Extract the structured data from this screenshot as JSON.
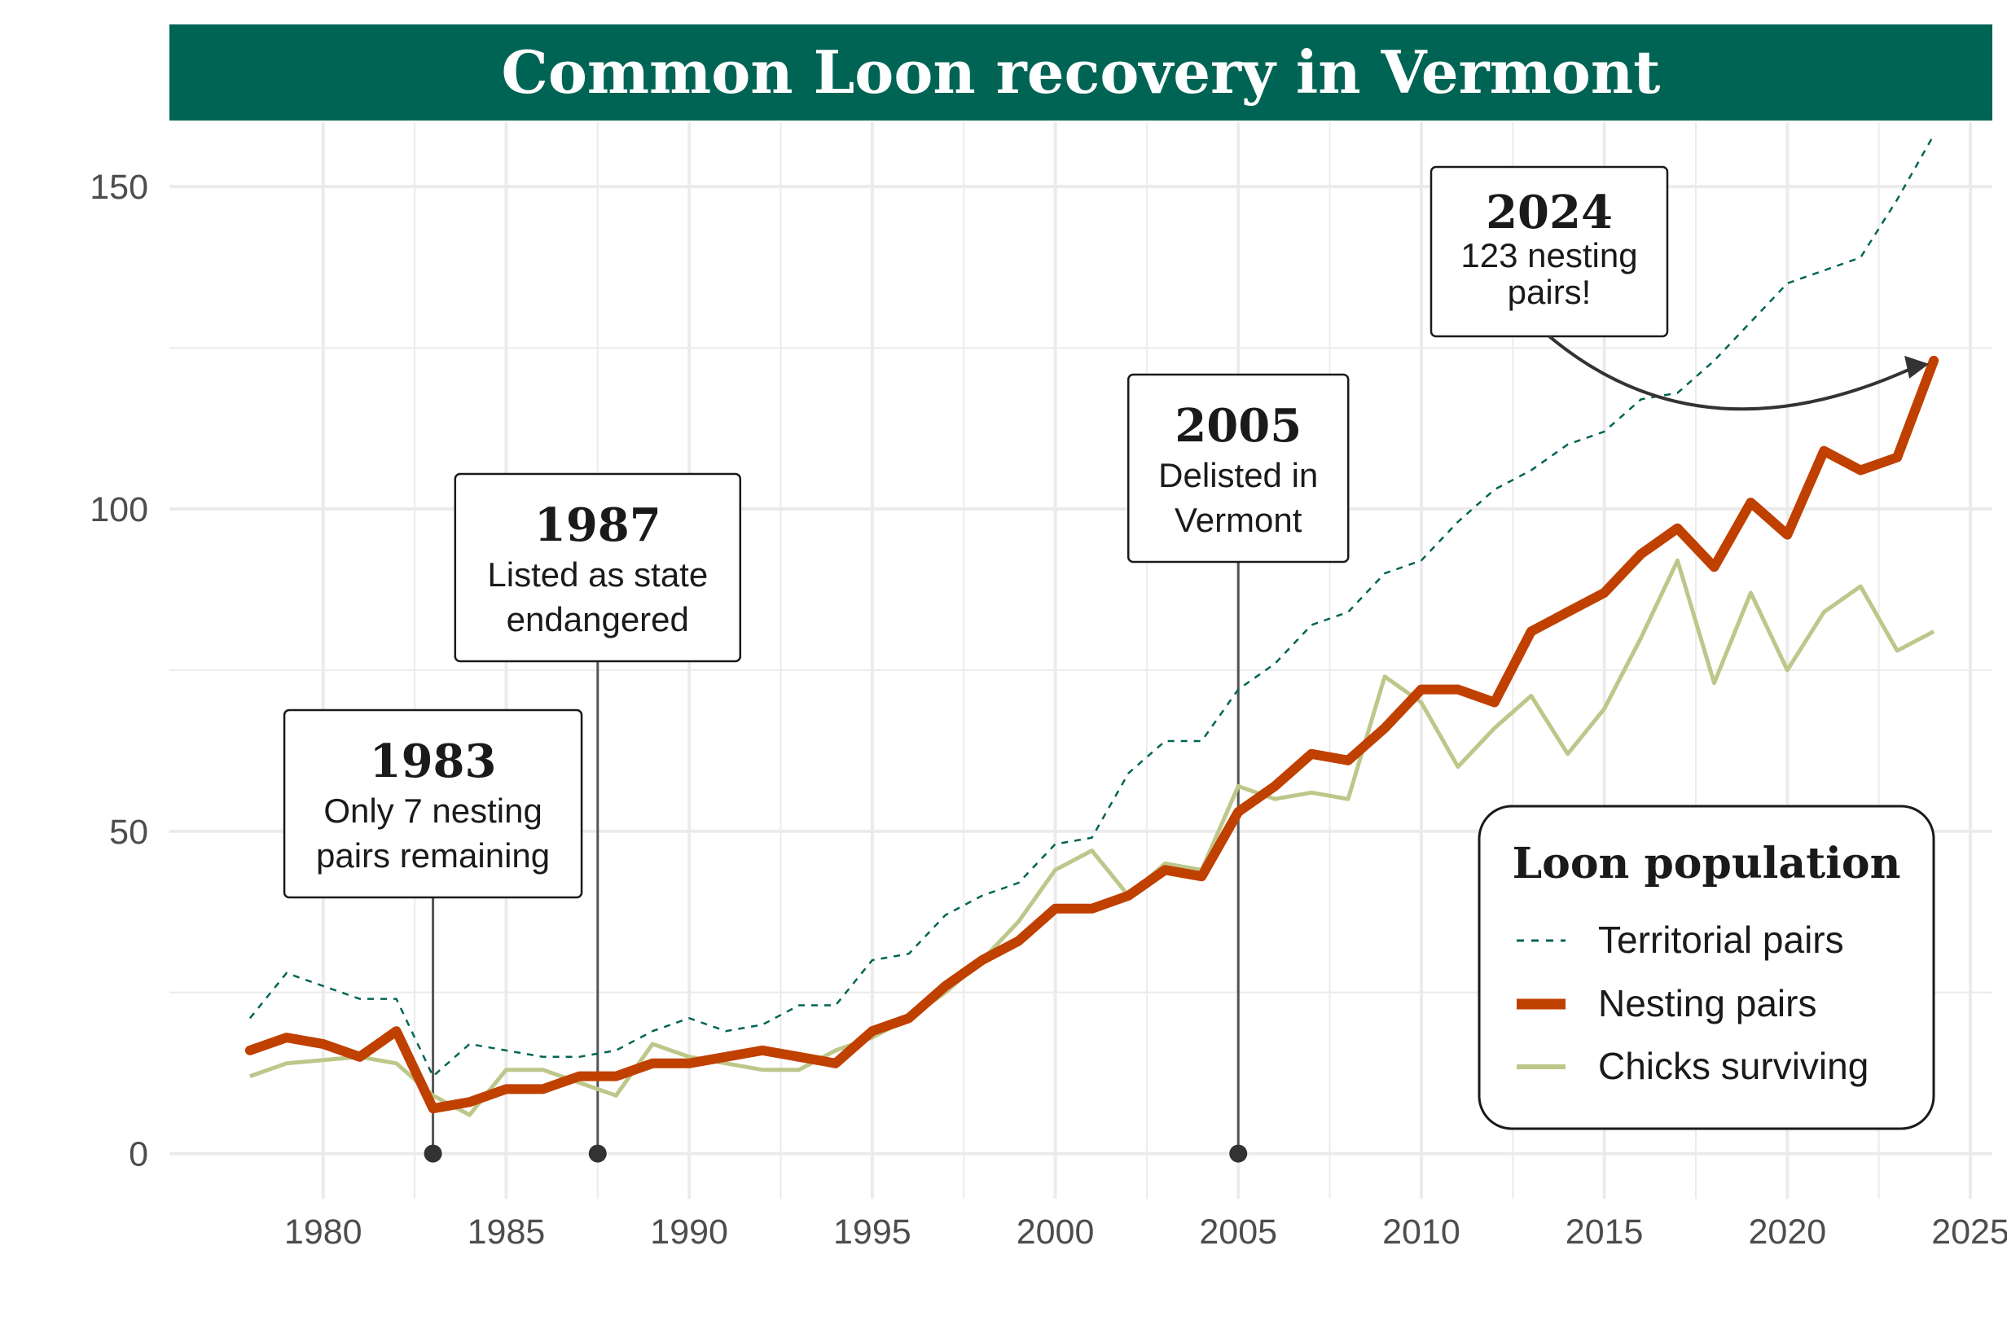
{
  "chart_data": {
    "type": "line",
    "title": "Common Loon recovery in Vermont",
    "xlabel": "",
    "ylabel": "",
    "xlim": [
      1975.8,
      2025.6
    ],
    "ylim": [
      -7,
      160
    ],
    "x_ticks": [
      1980,
      1985,
      1990,
      1995,
      2000,
      2005,
      2010,
      2015,
      2020,
      2025
    ],
    "y_ticks": [
      0,
      50,
      100,
      150
    ],
    "grid": true,
    "legend_position": "bottom-right",
    "legend_title": "Loon population",
    "colors": {
      "title_bar": "#006455",
      "territorial": "#006455",
      "nesting": "#C04000",
      "chicks": "#BDC78A",
      "grid": "#ebebeb",
      "annotation": "#333333"
    },
    "x": [
      1978,
      1979,
      1980,
      1981,
      1982,
      1983,
      1984,
      1985,
      1986,
      1987,
      1988,
      1989,
      1990,
      1991,
      1992,
      1993,
      1994,
      1995,
      1996,
      1997,
      1998,
      1999,
      2000,
      2001,
      2002,
      2003,
      2004,
      2005,
      2006,
      2007,
      2008,
      2009,
      2010,
      2011,
      2012,
      2013,
      2014,
      2015,
      2016,
      2017,
      2018,
      2019,
      2020,
      2021,
      2022,
      2023,
      2024
    ],
    "series": [
      {
        "name": "Territorial pairs",
        "style": "dashed",
        "values": [
          21,
          28,
          26,
          24,
          24,
          12,
          17,
          16,
          15,
          15,
          16,
          19,
          21,
          19,
          20,
          23,
          23,
          30,
          31,
          37,
          40,
          42,
          48,
          49,
          59,
          64,
          64,
          72,
          76,
          82,
          84,
          90,
          92,
          98,
          103,
          106,
          110,
          112,
          117,
          118,
          123,
          129,
          135,
          137,
          139,
          148,
          158
        ]
      },
      {
        "name": "Nesting pairs",
        "style": "thick",
        "values": [
          16,
          18,
          17,
          15,
          19,
          7,
          8,
          10,
          10,
          12,
          12,
          14,
          14,
          15,
          16,
          15,
          14,
          19,
          21,
          26,
          30,
          33,
          38,
          38,
          40,
          44,
          43,
          53,
          57,
          62,
          61,
          66,
          72,
          72,
          70,
          81,
          84,
          87,
          93,
          97,
          91,
          101,
          96,
          109,
          106,
          108,
          123
        ]
      },
      {
        "name": "Chicks surviving",
        "style": "solid",
        "values": [
          12,
          14,
          14.5,
          15,
          14,
          9,
          6,
          13,
          13,
          11,
          9,
          17,
          15,
          14,
          13,
          13,
          16,
          18,
          21,
          25,
          30,
          36,
          44,
          47,
          40,
          45,
          44,
          57,
          55,
          56,
          55,
          74,
          70,
          60,
          66,
          71,
          62,
          69,
          80,
          92,
          73,
          87,
          75,
          84,
          88,
          78,
          81
        ]
      }
    ],
    "annotations": [
      {
        "year": "1983",
        "text": [
          "Only 7 nesting",
          "pairs remaining"
        ],
        "x": 1983,
        "type": "pin"
      },
      {
        "year": "1987",
        "text": [
          "Listed as state",
          "endangered"
        ],
        "x": 1987.5,
        "type": "pin"
      },
      {
        "year": "2005",
        "text": [
          "Delisted in",
          "Vermont"
        ],
        "x": 2005,
        "type": "pin"
      },
      {
        "year": "2024",
        "text": [
          "123 nesting",
          "pairs!"
        ],
        "x": 2024,
        "y": 123,
        "type": "arrow"
      }
    ]
  }
}
